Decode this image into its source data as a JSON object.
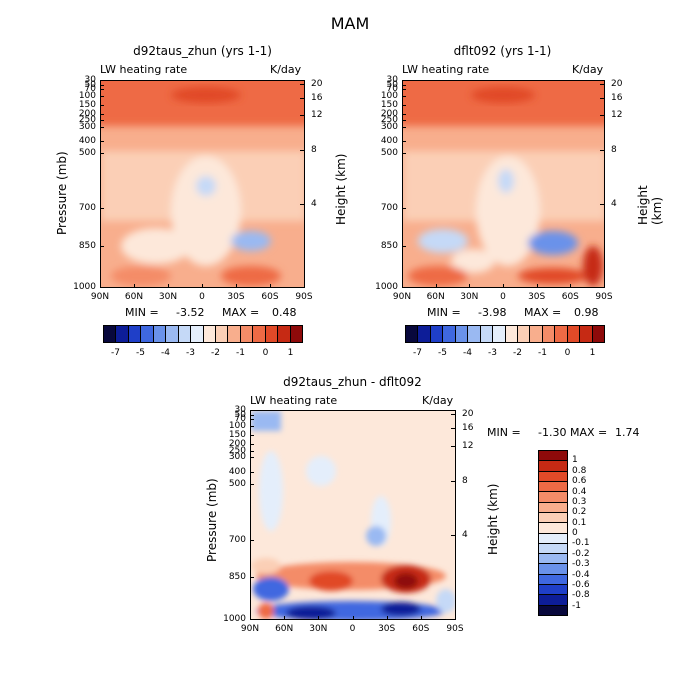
{
  "figure": {
    "title": "MAM",
    "variable": "LW heating rate",
    "units": "K/day",
    "ylabel_left": "Pressure (mb)",
    "ylabel_right": "Height (km)"
  },
  "panels": [
    {
      "title": "d92taus_zhun (yrs 1-1)",
      "min_label": "MIN =",
      "min": "-3.52",
      "max_label": "MAX =",
      "max": "0.48"
    },
    {
      "title": "dflt092 (yrs 1-1)",
      "min_label": "MIN =",
      "min": "-3.98",
      "max_label": "MAX =",
      "max": "0.98"
    },
    {
      "title": "d92taus_zhun - dflt092",
      "min_label": "MIN =",
      "min": "-1.30",
      "max_label": "MAX =",
      "max": "1.74"
    }
  ],
  "axes": {
    "x_ticks": [
      "90N",
      "60N",
      "30N",
      "0",
      "30S",
      "60S",
      "90S"
    ],
    "p_ticks": [
      "30",
      "50",
      "70",
      "100",
      "150",
      "200",
      "250",
      "300",
      "400",
      "500",
      "700",
      "850",
      "1000"
    ],
    "h_ticks": [
      "20",
      "16",
      "12",
      "8",
      "4"
    ]
  },
  "colorbar_top": {
    "labels": [
      "-7",
      "-5",
      "-4",
      "-3",
      "-2",
      "-1",
      "0",
      "1"
    ],
    "colors": [
      "#08083c",
      "#0d1d98",
      "#1f3fc8",
      "#3f68e0",
      "#6a92ea",
      "#9ab9f2",
      "#c5d9f7",
      "#e4eefb",
      "#fde8da",
      "#fbcfb6",
      "#f8ae8d",
      "#f48c68",
      "#ee6a45",
      "#e14a28",
      "#c62a14",
      "#8e0a0a"
    ]
  },
  "colorbar_diff": {
    "labels": [
      "1",
      "0.8",
      "0.6",
      "0.4",
      "0.3",
      "0.2",
      "0.1",
      "0",
      "-0.1",
      "-0.2",
      "-0.3",
      "-0.4",
      "-0.6",
      "-0.8",
      "-1"
    ],
    "colors": [
      "#8e0a0a",
      "#c62a14",
      "#e14a28",
      "#ee6a45",
      "#f48c68",
      "#f8ae8d",
      "#fbcfb6",
      "#fde8da",
      "#e4eefb",
      "#c5d9f7",
      "#9ab9f2",
      "#6a92ea",
      "#3f68e0",
      "#1f3fc8",
      "#0d1d98",
      "#08083c"
    ]
  },
  "chart_data": [
    {
      "type": "heatmap",
      "title": "d92taus_zhun (yrs 1-1)",
      "xlabel": "",
      "ylabel": "Pressure (mb)",
      "x": [
        "90N",
        "60N",
        "30N",
        "0",
        "30S",
        "60S",
        "90S"
      ],
      "y": [
        "30",
        "50",
        "70",
        "100",
        "150",
        "200",
        "250",
        "300",
        "400",
        "500",
        "700",
        "850",
        "1000"
      ],
      "min": -3.52,
      "max": 0.48
    },
    {
      "type": "heatmap",
      "title": "dflt092 (yrs 1-1)",
      "xlabel": "",
      "ylabel": "Pressure (mb)",
      "x": [
        "90N",
        "60N",
        "30N",
        "0",
        "30S",
        "60S",
        "90S"
      ],
      "y": [
        "30",
        "50",
        "70",
        "100",
        "150",
        "200",
        "250",
        "300",
        "400",
        "500",
        "700",
        "850",
        "1000"
      ],
      "min": -3.98,
      "max": 0.98
    },
    {
      "type": "heatmap",
      "title": "d92taus_zhun - dflt092",
      "xlabel": "",
      "ylabel": "Pressure (mb)",
      "x": [
        "90N",
        "60N",
        "30N",
        "0",
        "30S",
        "60S",
        "90S"
      ],
      "y": [
        "30",
        "50",
        "70",
        "100",
        "150",
        "200",
        "250",
        "300",
        "400",
        "500",
        "700",
        "850",
        "1000"
      ],
      "min": -1.3,
      "max": 1.74
    }
  ]
}
